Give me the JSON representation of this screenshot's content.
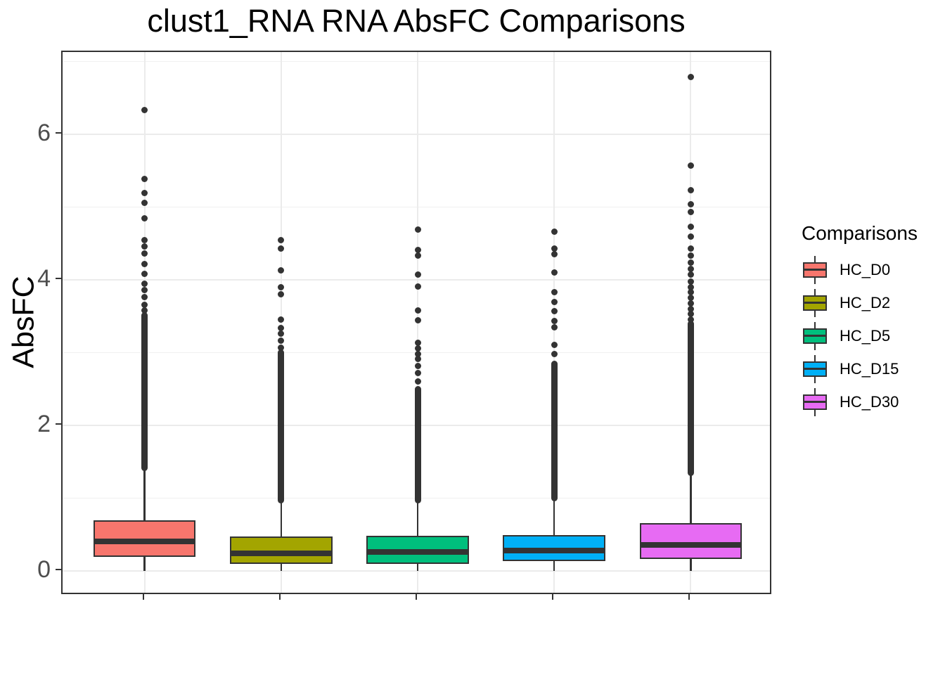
{
  "title": "clust1_RNA RNA AbsFC Comparisons",
  "y_axis": {
    "label": "AbsFC",
    "tick_labels": [
      "0",
      "2",
      "4",
      "6"
    ]
  },
  "x_axis": {
    "tick_labels_shown": false
  },
  "legend": {
    "title": "Comparisons",
    "items": [
      {
        "label": "HC_D0",
        "color": "#F8766D"
      },
      {
        "label": "HC_D2",
        "color": "#A3A500"
      },
      {
        "label": "HC_D5",
        "color": "#00BF7D"
      },
      {
        "label": "HC_D15",
        "color": "#00B0F6"
      },
      {
        "label": "HC_D30",
        "color": "#E76BF3"
      }
    ]
  },
  "colors": {
    "box_stroke": "#333333",
    "outlier": "#333333",
    "grid_major": "#EBEBEB",
    "grid_minor": "#F0F0F0",
    "panel_border": "#333333",
    "axis_text": "#4D4D4D"
  },
  "chart_data": {
    "type": "boxplot",
    "title": "clust1_RNA RNA AbsFC Comparisons",
    "xlabel": "",
    "ylabel": "AbsFC",
    "ylim": [
      -0.35,
      7.1
    ],
    "y_ticks": [
      0,
      2,
      4,
      6
    ],
    "y_minor_gridlines": [
      1,
      3,
      5,
      7
    ],
    "grid": true,
    "legend_position": "right",
    "categories": [
      "HC_D0",
      "HC_D2",
      "HC_D5",
      "HC_D15",
      "HC_D30"
    ],
    "series": [
      {
        "name": "HC_D0",
        "color": "#F8766D",
        "q1": 0.19,
        "median": 0.41,
        "q3": 0.7,
        "whisker_low": 0.003,
        "whisker_high": 1.42,
        "outlier_dense_range": [
          1.42,
          3.51
        ],
        "outliers": [
          6.33,
          5.39,
          5.19,
          5.06,
          4.85,
          4.55,
          4.46,
          4.36,
          4.22,
          4.08,
          3.95,
          3.86,
          3.76,
          3.66,
          3.58
        ]
      },
      {
        "name": "HC_D2",
        "color": "#A3A500",
        "q1": 0.1,
        "median": 0.24,
        "q3": 0.47,
        "whisker_low": 0.003,
        "whisker_high": 0.97,
        "outlier_dense_range": [
          0.97,
          3.0
        ],
        "outliers": [
          4.55,
          4.43,
          4.13,
          3.9,
          3.8,
          3.45,
          3.34,
          3.26,
          3.16,
          3.07
        ]
      },
      {
        "name": "HC_D5",
        "color": "#00BF7D",
        "q1": 0.1,
        "median": 0.26,
        "q3": 0.48,
        "whisker_low": 0.003,
        "whisker_high": 0.97,
        "outlier_dense_range": [
          0.97,
          2.5
        ],
        "outliers": [
          4.69,
          4.41,
          4.33,
          4.07,
          3.91,
          3.58,
          3.44,
          3.14,
          3.06,
          2.98,
          2.91,
          2.82,
          2.72,
          2.6
        ]
      },
      {
        "name": "HC_D15",
        "color": "#00B0F6",
        "q1": 0.14,
        "median": 0.28,
        "q3": 0.49,
        "whisker_low": 0.003,
        "whisker_high": 1.0,
        "outlier_dense_range": [
          1.0,
          2.85
        ],
        "outliers": [
          4.66,
          4.43,
          4.35,
          4.1,
          3.83,
          3.7,
          3.57,
          3.43,
          3.35,
          3.11,
          2.98
        ]
      },
      {
        "name": "HC_D30",
        "color": "#E76BF3",
        "q1": 0.16,
        "median": 0.36,
        "q3": 0.66,
        "whisker_low": 0.003,
        "whisker_high": 1.35,
        "outlier_dense_range": [
          1.35,
          3.4
        ],
        "outliers": [
          6.79,
          5.57,
          5.23,
          5.04,
          4.93,
          4.73,
          4.59,
          4.43,
          4.33,
          4.24,
          4.15,
          4.07,
          3.98,
          3.9,
          3.83,
          3.75,
          3.68,
          3.6,
          3.53,
          3.45
        ]
      }
    ]
  }
}
